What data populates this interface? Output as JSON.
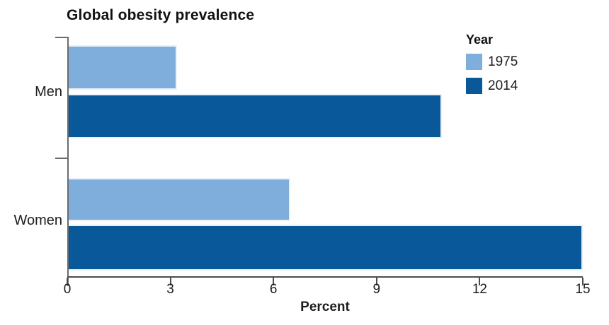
{
  "chart_data": {
    "type": "bar",
    "orientation": "horizontal",
    "title": "Global obesity prevalence",
    "categories": [
      "Men",
      "Women"
    ],
    "series": [
      {
        "name": "1975",
        "color": "#7FAEDC",
        "values": [
          3.2,
          6.5
        ]
      },
      {
        "name": "2014",
        "color": "#09599A",
        "values": [
          10.9,
          15.0
        ]
      }
    ],
    "xlabel": "Percent",
    "xlim": [
      0,
      15
    ],
    "x_tick_labels": [
      "0",
      "3",
      "6",
      "9",
      "12",
      "15"
    ],
    "legend_title": "Year",
    "legend_position": "top-right",
    "grid": false,
    "axis_color": "#4d4d4d",
    "text_color": "#1c1c1c",
    "background_color": "#ffffff"
  }
}
